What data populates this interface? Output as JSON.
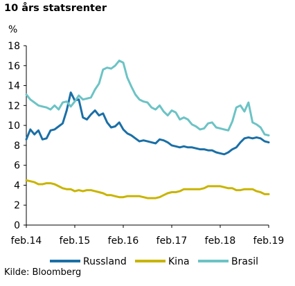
{
  "title": "10 års statsrenter",
  "source": "Kilde: Bloomberg",
  "chart_data": {
    "type": "line",
    "title": "10 års statsrenter",
    "ylabel": "%",
    "ylim": [
      0,
      18
    ],
    "yticks": [
      0,
      2,
      4,
      6,
      8,
      10,
      12,
      14,
      16,
      18
    ],
    "xlim": [
      "2014-02",
      "2019-02"
    ],
    "xtick_labels": [
      "feb.14",
      "feb.15",
      "feb.16",
      "feb.17",
      "feb.18",
      "feb.19"
    ],
    "grid": false,
    "legend": "bottom",
    "series": [
      {
        "name": "Russland",
        "color": "#1a6fa6",
        "points": [
          [
            "2014-02",
            8.6
          ],
          [
            "2014-03",
            9.6
          ],
          [
            "2014-04",
            9.1
          ],
          [
            "2014-05",
            9.5
          ],
          [
            "2014-06",
            8.6
          ],
          [
            "2014-07",
            8.7
          ],
          [
            "2014-08",
            9.5
          ],
          [
            "2014-09",
            9.6
          ],
          [
            "2014-10",
            9.9
          ],
          [
            "2014-11",
            10.2
          ],
          [
            "2014-12",
            11.5
          ],
          [
            "2015-01",
            13.3
          ],
          [
            "2015-02",
            12.5
          ],
          [
            "2015-03",
            12.6
          ],
          [
            "2015-04",
            10.8
          ],
          [
            "2015-05",
            10.6
          ],
          [
            "2015-06",
            11.1
          ],
          [
            "2015-07",
            11.5
          ],
          [
            "2015-08",
            11.0
          ],
          [
            "2015-09",
            11.2
          ],
          [
            "2015-10",
            10.3
          ],
          [
            "2015-11",
            9.8
          ],
          [
            "2015-12",
            9.9
          ],
          [
            "2016-01",
            10.3
          ],
          [
            "2016-02",
            9.6
          ],
          [
            "2016-03",
            9.2
          ],
          [
            "2016-04",
            9.0
          ],
          [
            "2016-05",
            8.7
          ],
          [
            "2016-06",
            8.4
          ],
          [
            "2016-07",
            8.5
          ],
          [
            "2016-08",
            8.4
          ],
          [
            "2016-09",
            8.3
          ],
          [
            "2016-10",
            8.2
          ],
          [
            "2016-11",
            8.6
          ],
          [
            "2016-12",
            8.5
          ],
          [
            "2017-01",
            8.3
          ],
          [
            "2017-02",
            8.0
          ],
          [
            "2017-03",
            7.9
          ],
          [
            "2017-04",
            7.8
          ],
          [
            "2017-05",
            7.9
          ],
          [
            "2017-06",
            7.8
          ],
          [
            "2017-07",
            7.8
          ],
          [
            "2017-08",
            7.7
          ],
          [
            "2017-09",
            7.6
          ],
          [
            "2017-10",
            7.6
          ],
          [
            "2017-11",
            7.5
          ],
          [
            "2017-12",
            7.5
          ],
          [
            "2018-01",
            7.3
          ],
          [
            "2018-02",
            7.2
          ],
          [
            "2018-03",
            7.1
          ],
          [
            "2018-04",
            7.3
          ],
          [
            "2018-05",
            7.6
          ],
          [
            "2018-06",
            7.8
          ],
          [
            "2018-07",
            8.3
          ],
          [
            "2018-08",
            8.7
          ],
          [
            "2018-09",
            8.8
          ],
          [
            "2018-10",
            8.7
          ],
          [
            "2018-11",
            8.8
          ],
          [
            "2018-12",
            8.7
          ],
          [
            "2019-01",
            8.4
          ],
          [
            "2019-02",
            8.3
          ]
        ]
      },
      {
        "name": "Kina",
        "color": "#c8b400",
        "points": [
          [
            "2014-02",
            4.5
          ],
          [
            "2014-03",
            4.4
          ],
          [
            "2014-04",
            4.3
          ],
          [
            "2014-05",
            4.1
          ],
          [
            "2014-06",
            4.1
          ],
          [
            "2014-07",
            4.2
          ],
          [
            "2014-08",
            4.2
          ],
          [
            "2014-09",
            4.1
          ],
          [
            "2014-10",
            3.9
          ],
          [
            "2014-11",
            3.7
          ],
          [
            "2014-12",
            3.6
          ],
          [
            "2015-01",
            3.6
          ],
          [
            "2015-02",
            3.4
          ],
          [
            "2015-03",
            3.5
          ],
          [
            "2015-04",
            3.4
          ],
          [
            "2015-05",
            3.5
          ],
          [
            "2015-06",
            3.5
          ],
          [
            "2015-07",
            3.4
          ],
          [
            "2015-08",
            3.3
          ],
          [
            "2015-09",
            3.2
          ],
          [
            "2015-10",
            3.0
          ],
          [
            "2015-11",
            3.0
          ],
          [
            "2015-12",
            2.9
          ],
          [
            "2016-01",
            2.8
          ],
          [
            "2016-02",
            2.8
          ],
          [
            "2016-03",
            2.9
          ],
          [
            "2016-04",
            2.9
          ],
          [
            "2016-05",
            2.9
          ],
          [
            "2016-06",
            2.9
          ],
          [
            "2016-07",
            2.8
          ],
          [
            "2016-08",
            2.7
          ],
          [
            "2016-09",
            2.7
          ],
          [
            "2016-10",
            2.7
          ],
          [
            "2016-11",
            2.8
          ],
          [
            "2016-12",
            3.0
          ],
          [
            "2017-01",
            3.2
          ],
          [
            "2017-02",
            3.3
          ],
          [
            "2017-03",
            3.3
          ],
          [
            "2017-04",
            3.4
          ],
          [
            "2017-05",
            3.6
          ],
          [
            "2017-06",
            3.6
          ],
          [
            "2017-07",
            3.6
          ],
          [
            "2017-08",
            3.6
          ],
          [
            "2017-09",
            3.6
          ],
          [
            "2017-10",
            3.7
          ],
          [
            "2017-11",
            3.9
          ],
          [
            "2017-12",
            3.9
          ],
          [
            "2018-01",
            3.9
          ],
          [
            "2018-02",
            3.9
          ],
          [
            "2018-03",
            3.8
          ],
          [
            "2018-04",
            3.7
          ],
          [
            "2018-05",
            3.7
          ],
          [
            "2018-06",
            3.5
          ],
          [
            "2018-07",
            3.5
          ],
          [
            "2018-08",
            3.6
          ],
          [
            "2018-09",
            3.6
          ],
          [
            "2018-10",
            3.6
          ],
          [
            "2018-11",
            3.4
          ],
          [
            "2018-12",
            3.3
          ],
          [
            "2019-01",
            3.1
          ],
          [
            "2019-02",
            3.1
          ]
        ]
      },
      {
        "name": "Brasil",
        "color": "#6cc3c5",
        "points": [
          [
            "2014-02",
            13.1
          ],
          [
            "2014-03",
            12.6
          ],
          [
            "2014-04",
            12.3
          ],
          [
            "2014-05",
            12.0
          ],
          [
            "2014-06",
            11.9
          ],
          [
            "2014-07",
            11.8
          ],
          [
            "2014-08",
            11.6
          ],
          [
            "2014-09",
            12.0
          ],
          [
            "2014-10",
            11.6
          ],
          [
            "2014-11",
            12.3
          ],
          [
            "2014-12",
            12.4
          ],
          [
            "2015-01",
            11.9
          ],
          [
            "2015-02",
            12.4
          ],
          [
            "2015-03",
            13.0
          ],
          [
            "2015-04",
            12.6
          ],
          [
            "2015-05",
            12.7
          ],
          [
            "2015-06",
            12.8
          ],
          [
            "2015-07",
            13.6
          ],
          [
            "2015-08",
            14.2
          ],
          [
            "2015-09",
            15.6
          ],
          [
            "2015-10",
            15.8
          ],
          [
            "2015-11",
            15.7
          ],
          [
            "2015-12",
            16.0
          ],
          [
            "2016-01",
            16.5
          ],
          [
            "2016-02",
            16.3
          ],
          [
            "2016-03",
            14.8
          ],
          [
            "2016-04",
            13.9
          ],
          [
            "2016-05",
            13.1
          ],
          [
            "2016-06",
            12.6
          ],
          [
            "2016-07",
            12.4
          ],
          [
            "2016-08",
            12.3
          ],
          [
            "2016-09",
            11.8
          ],
          [
            "2016-10",
            11.6
          ],
          [
            "2016-11",
            12.0
          ],
          [
            "2016-12",
            11.4
          ],
          [
            "2017-01",
            11.0
          ],
          [
            "2017-02",
            11.5
          ],
          [
            "2017-03",
            11.3
          ],
          [
            "2017-04",
            10.6
          ],
          [
            "2017-05",
            10.8
          ],
          [
            "2017-06",
            10.6
          ],
          [
            "2017-07",
            10.1
          ],
          [
            "2017-08",
            9.9
          ],
          [
            "2017-09",
            9.6
          ],
          [
            "2017-10",
            9.7
          ],
          [
            "2017-11",
            10.2
          ],
          [
            "2017-12",
            10.3
          ],
          [
            "2018-01",
            9.8
          ],
          [
            "2018-02",
            9.7
          ],
          [
            "2018-03",
            9.6
          ],
          [
            "2018-04",
            9.5
          ],
          [
            "2018-05",
            10.4
          ],
          [
            "2018-06",
            11.8
          ],
          [
            "2018-07",
            12.0
          ],
          [
            "2018-08",
            11.4
          ],
          [
            "2018-09",
            12.3
          ],
          [
            "2018-10",
            10.3
          ],
          [
            "2018-11",
            10.1
          ],
          [
            "2018-12",
            9.8
          ],
          [
            "2019-01",
            9.1
          ],
          [
            "2019-02",
            9.0
          ]
        ]
      }
    ]
  }
}
